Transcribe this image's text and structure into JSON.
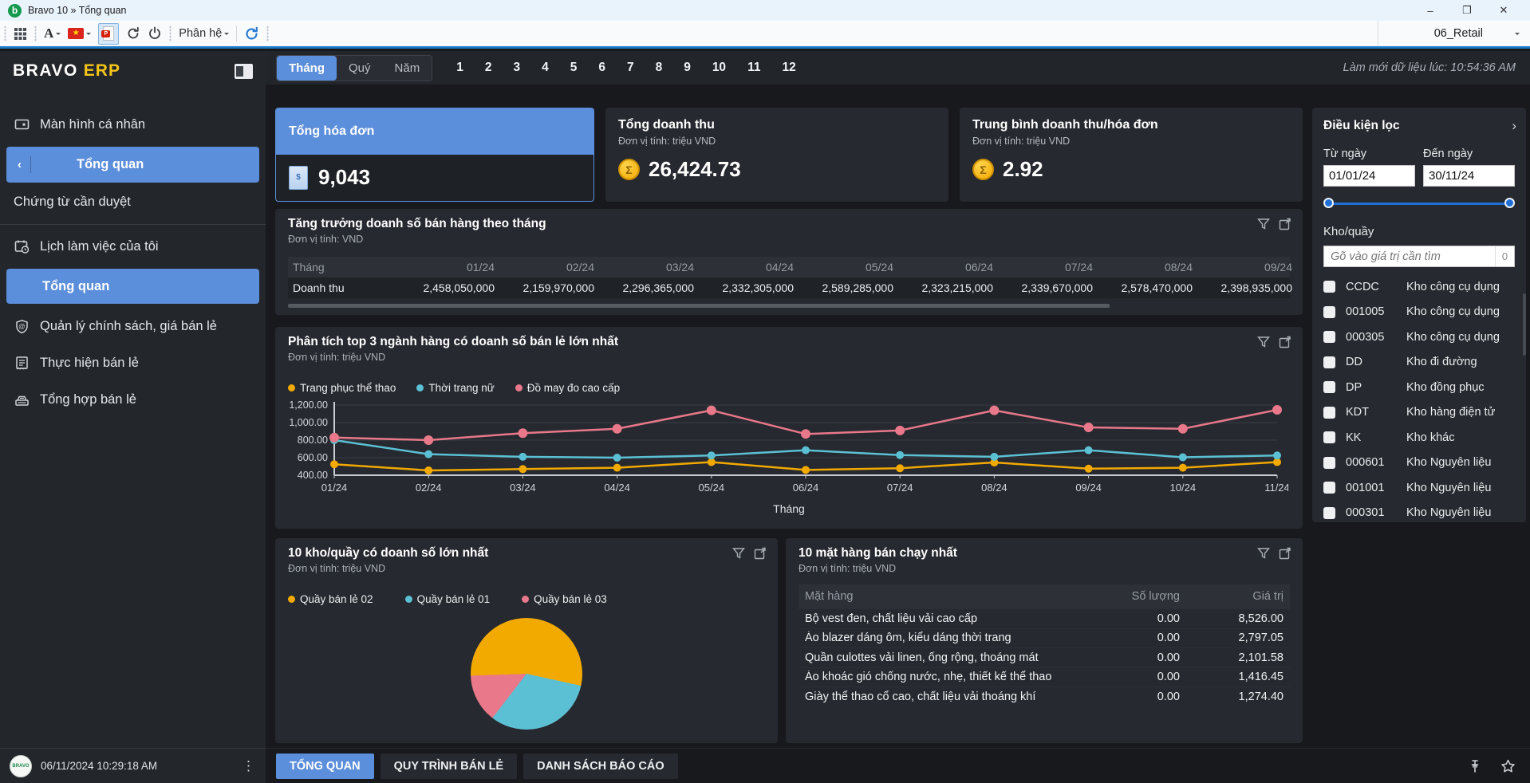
{
  "window": {
    "title": "Bravo 10 » Tổng quan",
    "logo_letter": "b",
    "controls": {
      "minimize": "–",
      "restore": "❐",
      "close": "✕"
    }
  },
  "toolbar": {
    "font_label": "A",
    "module_label": "Phân hệ",
    "company": "06_Retail",
    "pdf_label": "P"
  },
  "sidebar": {
    "brand": {
      "bravo": "BRAVO",
      "erp": "ERP"
    },
    "items": [
      {
        "label": "Màn hình cá nhân"
      },
      {
        "label": "Tổng quan"
      },
      {
        "label": "Chứng từ cần duyệt"
      },
      {
        "label": "Lịch làm việc của tôi"
      },
      {
        "label": "Tổng quan"
      },
      {
        "label": "Quản lý chính sách, giá bán lẻ"
      },
      {
        "label": "Thực hiện bán lẻ"
      },
      {
        "label": "Tổng hợp bán lẻ"
      }
    ],
    "collapse_glyph": "‹"
  },
  "topbar": {
    "period_tabs": [
      "Tháng",
      "Quý",
      "Năm"
    ],
    "active_period": "Tháng",
    "months": [
      "1",
      "2",
      "3",
      "4",
      "5",
      "6",
      "7",
      "8",
      "9",
      "10",
      "11",
      "12"
    ],
    "refresh_note": "Làm mới dữ liệu lúc: 10:54:36 AM"
  },
  "kpis": [
    {
      "title": "Tổng hóa đơn",
      "value": "9,043",
      "icon": "invoice"
    },
    {
      "title": "Tổng doanh thu",
      "unit": "Đơn vị tính: triệu VND",
      "value": "26,424.73",
      "icon": "coin",
      "coin_glyph": "Σ"
    },
    {
      "title": "Trung bình doanh thu/hóa đơn",
      "unit": "Đơn vị tính: triệu VND",
      "value": "2.92",
      "icon": "coin",
      "coin_glyph": "Σ"
    }
  ],
  "growth_table": {
    "title": "Tăng trưởng doanh số bán hàng theo tháng",
    "unit": "Đơn vị tính: VND",
    "row_label_header": "Tháng",
    "row_label": "Doanh thu",
    "months": [
      "01/24",
      "02/24",
      "03/24",
      "04/24",
      "05/24",
      "06/24",
      "07/24",
      "08/24",
      "09/24"
    ],
    "values": [
      "2,458,050,000",
      "2,159,970,000",
      "2,296,365,000",
      "2,332,305,000",
      "2,589,285,000",
      "2,323,215,000",
      "2,339,670,000",
      "2,578,470,000",
      "2,398,935,000"
    ]
  },
  "chart_data": [
    {
      "type": "line",
      "title": "Phân tích top 3 ngành hàng có doanh số bán lẻ lớn nhất",
      "subtitle": "Đơn vị tính: triệu VND",
      "xlabel": "Tháng",
      "categories": [
        "01/24",
        "02/24",
        "03/24",
        "04/24",
        "05/24",
        "06/24",
        "07/24",
        "08/24",
        "09/24",
        "10/24",
        "11/24"
      ],
      "series": [
        {
          "name": "Trang phục thể thao",
          "color": "#f2a900",
          "values": [
            525,
            455,
            470,
            485,
            550,
            460,
            480,
            545,
            475,
            485,
            550
          ]
        },
        {
          "name": "Thời trang nữ",
          "color": "#5bc0d4",
          "values": [
            800,
            640,
            610,
            600,
            625,
            685,
            630,
            610,
            685,
            605,
            625
          ]
        },
        {
          "name": "Đồ may đo cao cấp",
          "color": "#e8788a",
          "values": [
            830,
            800,
            880,
            930,
            1140,
            870,
            910,
            1140,
            945,
            930,
            1145
          ]
        }
      ],
      "ylim": [
        400,
        1200
      ],
      "yticks": [
        {
          "v": 400,
          "label": "400.00"
        },
        {
          "v": 600,
          "label": "600.00"
        },
        {
          "v": 800,
          "label": "800.00"
        },
        {
          "v": 1000,
          "label": "1,000.00"
        },
        {
          "v": 1200,
          "label": "1,200.00"
        }
      ],
      "grid": true,
      "legend_position": "top"
    },
    {
      "type": "pie",
      "title": "10 kho/quầy có doanh số lớn nhất",
      "subtitle": "Đơn vị tính: triệu VND",
      "slices": [
        {
          "name": "Quầy bán lẻ 02",
          "color": "#f2a900",
          "percent": 54
        },
        {
          "name": "Quầy bán lẻ 01",
          "color": "#5bc0d4",
          "percent": 32
        },
        {
          "name": "Quầy bán lẻ 03",
          "color": "#e8788a",
          "percent": 14
        }
      ],
      "start_angle_deg": 268,
      "legend_position": "top"
    }
  ],
  "items_table": {
    "title": "10 mặt hàng bán chạy nhất",
    "unit": "Đơn vị tính: triệu VND",
    "columns": [
      "Mặt hàng",
      "Số lượng",
      "Giá trị"
    ],
    "rows": [
      {
        "name": "Bộ vest đen, chất liệu vải cao cấp",
        "qty": "0.00",
        "value": "8,526.00"
      },
      {
        "name": "Áo blazer dáng ôm, kiểu dáng thời trang",
        "qty": "0.00",
        "value": "2,797.05"
      },
      {
        "name": "Quần culottes vải linen, ống rộng, thoáng mát",
        "qty": "0.00",
        "value": "2,101.58"
      },
      {
        "name": "Áo khoác gió chống nước, nhẹ, thiết kế thể thao",
        "qty": "0.00",
        "value": "1,416.45"
      },
      {
        "name": "Giày thể thao cổ cao, chất liệu vải thoáng khí",
        "qty": "0.00",
        "value": "1,274.40"
      }
    ]
  },
  "filter_panel": {
    "title": "Điều kiện lọc",
    "chevron": "›",
    "from_label": "Từ ngày",
    "to_label": "Đến ngày",
    "from_value": "01/01/24",
    "to_value": "30/11/24",
    "warehouse_label": "Kho/quầy",
    "search_placeholder": "Gõ vào giá trị cần tìm",
    "search_count": "0",
    "warehouses": [
      {
        "code": "CCDC",
        "name": "Kho công cụ dụng"
      },
      {
        "code": "001005",
        "name": "Kho công cụ dụng"
      },
      {
        "code": "000305",
        "name": "Kho công cụ dụng"
      },
      {
        "code": "DD",
        "name": "Kho đi đường"
      },
      {
        "code": "DP",
        "name": "Kho đồng phục"
      },
      {
        "code": "KDT",
        "name": "Kho hàng điện tử"
      },
      {
        "code": "KK",
        "name": "Kho khác"
      },
      {
        "code": "000601",
        "name": "Kho Nguyên liệu"
      },
      {
        "code": "001001",
        "name": "Kho Nguyên liệu"
      },
      {
        "code": "000301",
        "name": "Kho Nguyên liệu"
      }
    ]
  },
  "bottom_bar": {
    "datetime": "06/11/2024 10:29:18 AM",
    "avatar_text": "BRAVO",
    "menu_glyph": "⋮",
    "tabs": [
      {
        "label": "TỔNG QUAN",
        "active": true
      },
      {
        "label": "QUY TRÌNH BÁN LẺ",
        "active": false
      },
      {
        "label": "DANH SÁCH BÁO CÁO",
        "active": false
      }
    ]
  },
  "colors": {
    "accent_blue": "#5b8edb",
    "gold": "#f2a900",
    "teal": "#5bc0d4",
    "pink": "#e8788a"
  }
}
